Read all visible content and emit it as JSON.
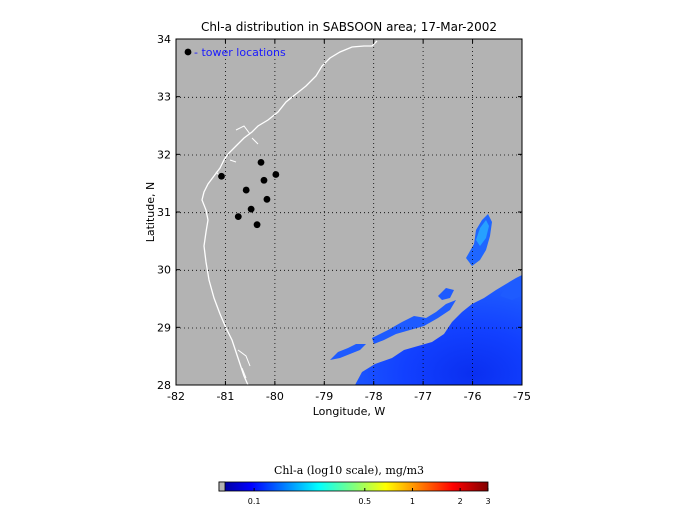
{
  "chart_data": {
    "type": "scatter",
    "title": "Chl-a distribution in SABSOON area; 17-Mar-2002",
    "xlabel": "Longitude, W",
    "ylabel": "Latitude, N",
    "xlim": [
      -82,
      -75
    ],
    "ylim": [
      28,
      34
    ],
    "x_ticks": [
      "-82",
      "-81",
      "-80",
      "-79",
      "-78",
      "-77",
      "-76",
      "-75"
    ],
    "y_ticks": [
      "28",
      "29",
      "30",
      "31",
      "32",
      "33",
      "34"
    ],
    "grid": true,
    "grid_style": "dotted",
    "legend": {
      "label": "- tower locations",
      "placement": "top-left",
      "color": "#1a1aff"
    },
    "series": [
      {
        "name": "tower locations",
        "points": [
          {
            "x": -81.08,
            "y": 31.62
          },
          {
            "x": -80.74,
            "y": 30.92
          },
          {
            "x": -80.58,
            "y": 31.38
          },
          {
            "x": -80.48,
            "y": 31.05
          },
          {
            "x": -80.36,
            "y": 30.78
          },
          {
            "x": -80.28,
            "y": 31.86
          },
          {
            "x": -80.22,
            "y": 31.55
          },
          {
            "x": -80.16,
            "y": 31.22
          },
          {
            "x": -79.98,
            "y": 31.65
          }
        ]
      }
    ],
    "colorbar": {
      "label": "Chl-a (log10 scale), mg/m3",
      "tick_labels": [
        "0.1",
        "0.5",
        "1",
        "2",
        "3"
      ],
      "tick_positions": [
        0.1,
        0.5,
        1,
        2,
        3
      ],
      "range": [
        0.06,
        3
      ]
    },
    "colors": {
      "land_mask": "#b3b3b3",
      "coastline": "#ffffff",
      "low_chl": "#1a4dff",
      "high_chl": "#00c8ff"
    }
  }
}
